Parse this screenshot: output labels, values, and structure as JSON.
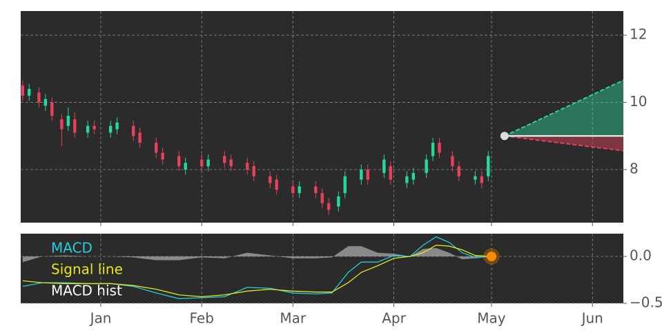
{
  "chart_data": [
    {
      "type": "candlestick",
      "x": [
        7,
        9,
        12,
        14,
        16,
        19,
        21,
        23,
        27,
        29,
        34,
        36,
        41,
        43,
        48,
        50,
        55,
        57,
        62,
        64,
        69,
        71,
        76,
        78,
        83,
        85,
        90,
        92,
        97,
        99,
        101,
        104,
        106,
        111,
        113,
        118,
        120,
        125,
        127,
        131,
        133,
        135,
        139,
        141,
        146,
        148,
        150
      ],
      "open": [
        10.5,
        10.2,
        10.3,
        9.9,
        10.0,
        9.5,
        9.3,
        9.5,
        9.1,
        9.3,
        9.1,
        9.2,
        9.3,
        9.1,
        8.8,
        8.5,
        8.4,
        8.0,
        8.3,
        8.1,
        8.4,
        8.3,
        8.2,
        8.1,
        7.8,
        7.7,
        7.5,
        7.3,
        7.5,
        7.3,
        7.0,
        6.9,
        7.3,
        7.7,
        8.0,
        7.9,
        8.1,
        7.6,
        7.7,
        7.9,
        8.4,
        8.8,
        8.4,
        8.1,
        7.7,
        7.8,
        7.8
      ],
      "high": [
        10.65,
        10.55,
        10.45,
        10.25,
        10.15,
        9.65,
        9.85,
        9.7,
        9.45,
        9.45,
        9.45,
        9.55,
        9.45,
        9.25,
        8.95,
        8.65,
        8.55,
        8.35,
        8.45,
        8.45,
        8.55,
        8.45,
        8.35,
        8.25,
        7.95,
        7.85,
        7.65,
        7.65,
        7.65,
        7.45,
        7.15,
        7.35,
        7.95,
        8.15,
        8.15,
        8.45,
        8.25,
        7.95,
        8.05,
        8.45,
        8.95,
        8.95,
        8.55,
        8.25,
        7.95,
        7.95,
        8.55
      ],
      "low": [
        10.05,
        10.05,
        9.85,
        9.75,
        9.45,
        8.7,
        9.15,
        8.95,
        8.95,
        9.05,
        8.95,
        9.05,
        8.85,
        8.65,
        8.35,
        8.15,
        7.95,
        7.85,
        7.95,
        7.95,
        8.05,
        7.95,
        7.85,
        7.65,
        7.45,
        7.25,
        7.15,
        7.15,
        7.15,
        6.85,
        6.65,
        6.75,
        7.15,
        7.55,
        7.55,
        7.75,
        7.55,
        7.45,
        7.55,
        7.75,
        8.25,
        8.35,
        7.95,
        7.65,
        7.55,
        7.45,
        7.65
      ],
      "close": [
        10.2,
        10.4,
        10.0,
        10.1,
        9.6,
        9.2,
        9.6,
        9.1,
        9.3,
        9.2,
        9.3,
        9.4,
        9.0,
        8.8,
        8.5,
        8.3,
        8.1,
        8.2,
        8.1,
        8.3,
        8.2,
        8.1,
        8.0,
        7.8,
        7.6,
        7.4,
        7.3,
        7.5,
        7.3,
        7.0,
        6.8,
        7.2,
        7.8,
        8.0,
        7.7,
        8.3,
        7.7,
        7.8,
        7.9,
        8.3,
        8.8,
        8.5,
        8.1,
        7.8,
        7.8,
        7.6,
        8.4
      ],
      "up_color": "#26d99e",
      "down_color": "#e8415c",
      "forecast": {
        "x": [
          155,
          191.5
        ],
        "base": [
          9.0,
          9.0
        ],
        "upper": [
          9.0,
          10.66
        ],
        "lower": [
          9.0,
          8.56
        ],
        "upper_color": "#2ed19a",
        "lower_color": "#e0435e",
        "base_color": "#ffffff"
      },
      "xlim": [
        6.4,
        191.5
      ],
      "ylim": [
        6.42,
        12.72
      ],
      "yticks": [
        8,
        10,
        12
      ],
      "grid": true
    },
    {
      "type": "line",
      "x": [
        7,
        13,
        20,
        27,
        34,
        41,
        48,
        55,
        62,
        69,
        76,
        83,
        90,
        97,
        102,
        107,
        111,
        116,
        121,
        126,
        130,
        134,
        138,
        142,
        146,
        151
      ],
      "series": [
        {
          "name": "MACD",
          "color": "#22cfe0",
          "values": [
            -0.32,
            -0.28,
            -0.28,
            -0.29,
            -0.29,
            -0.32,
            -0.39,
            -0.45,
            -0.44,
            -0.43,
            -0.33,
            -0.34,
            -0.39,
            -0.4,
            -0.39,
            -0.17,
            -0.06,
            -0.06,
            0.01,
            0,
            0.12,
            0.21,
            0.15,
            0.04,
            -0.01,
            0
          ]
        },
        {
          "name": "Signal line",
          "color": "#e6e619",
          "values": [
            -0.26,
            -0.28,
            -0.29,
            -0.29,
            -0.29,
            -0.31,
            -0.35,
            -0.41,
            -0.43,
            -0.41,
            -0.37,
            -0.35,
            -0.37,
            -0.38,
            -0.38,
            -0.28,
            -0.17,
            -0.1,
            -0.02,
            0,
            0.04,
            0.12,
            0.11,
            0.07,
            0.01,
            0
          ]
        },
        {
          "name": "MACD hist",
          "color": "#9a9a9a",
          "style": "area",
          "values": [
            -0.06,
            0,
            0.01,
            0,
            0,
            -0.01,
            -0.04,
            -0.04,
            -0.01,
            -0.02,
            0.04,
            0.01,
            -0.02,
            -0.02,
            -0.01,
            0.11,
            0.11,
            0.04,
            0.03,
            0,
            0.08,
            0.09,
            0.04,
            -0.03,
            -0.02,
            0
          ]
        }
      ],
      "legend_text_color": "#ffffff",
      "marker_color": "#ff8c00",
      "xlim": [
        6.4,
        191.5
      ],
      "ylim": [
        -0.5,
        0.243
      ],
      "yticks": [
        {
          "value": 0,
          "label": "0.0"
        },
        {
          "value": -0.5,
          "label": "−0.5"
        }
      ],
      "xticks": [
        {
          "value": 31,
          "label": "Jan"
        },
        {
          "value": 62,
          "label": "Feb"
        },
        {
          "value": 90,
          "label": "Mar"
        },
        {
          "value": 121,
          "label": "Apr"
        },
        {
          "value": 151,
          "label": "May"
        },
        {
          "value": 182,
          "label": "Jun"
        }
      ],
      "legend": "upper left",
      "grid": true
    }
  ]
}
